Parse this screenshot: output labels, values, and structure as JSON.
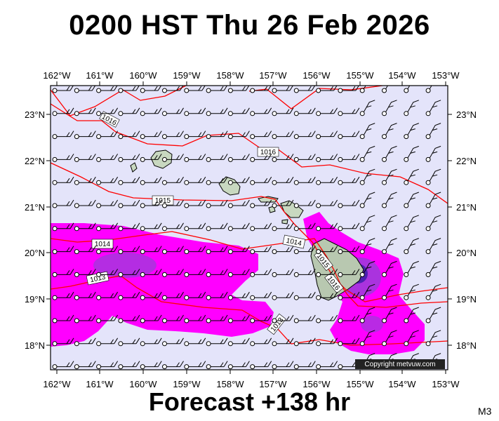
{
  "title": "0200 HST Thu 26 Feb 2026",
  "subtitle": "Forecast +138 hr",
  "model_tag": "M3",
  "copyright": "Copyright metvuw.com",
  "map": {
    "lon_min": -162.0,
    "lon_max": -152.8,
    "lat_min": 17.45,
    "lat_max": 23.6,
    "lon_ticks": [
      "162°W",
      "161°W",
      "160°W",
      "159°W",
      "158°W",
      "157°W",
      "156°W",
      "155°W",
      "154°W",
      "153°W"
    ],
    "lat_ticks": [
      "23°N",
      "22°N",
      "21°N",
      "20°N",
      "19°N",
      "18°N"
    ],
    "background_color": "#e4e4fa",
    "precip_color": "#ff00ff",
    "precip_heavy_color": "#9b3cd8",
    "isobar_color": "#ff0000",
    "isobar_labels": [
      "1016",
      "1016",
      "1015",
      "1014",
      "1014",
      "1013",
      "1015",
      "1016",
      "1013"
    ]
  }
}
